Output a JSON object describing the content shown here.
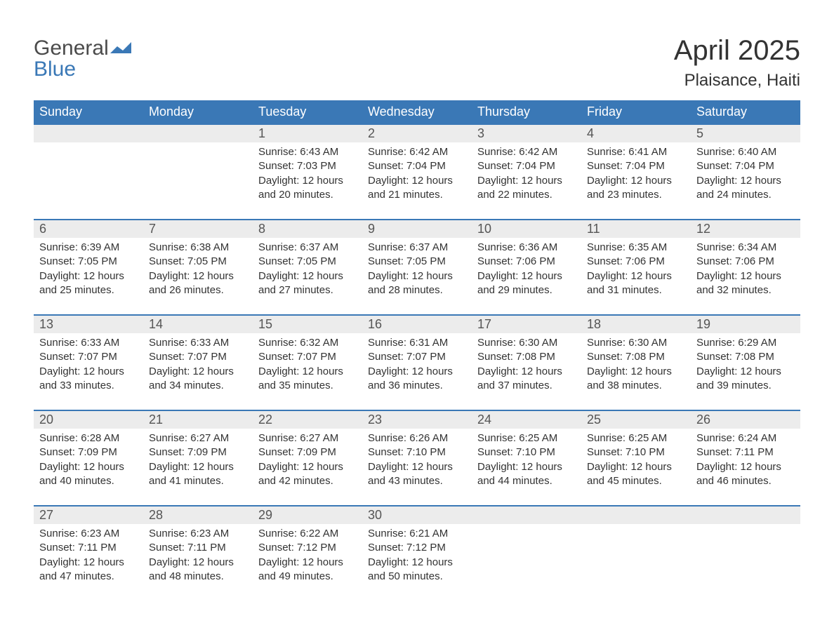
{
  "brand": {
    "word1": "General",
    "word2": "Blue"
  },
  "title": "April 2025",
  "location": "Plaisance, Haiti",
  "colors": {
    "header_bg": "#3a78b6",
    "header_text": "#ffffff",
    "daynum_bg": "#ececec",
    "text": "#333333",
    "rule": "#3a78b6",
    "page_bg": "#ffffff"
  },
  "typography": {
    "title_fontsize": 40,
    "location_fontsize": 24,
    "dow_fontsize": 18,
    "daynum_fontsize": 18,
    "body_fontsize": 15,
    "font_family": "Arial"
  },
  "layout": {
    "columns": 7,
    "rows": 5,
    "first_weekday": "Sunday"
  },
  "days_of_week": [
    "Sunday",
    "Monday",
    "Tuesday",
    "Wednesday",
    "Thursday",
    "Friday",
    "Saturday"
  ],
  "weeks": [
    [
      {
        "day": "",
        "sunrise": "",
        "sunset": "",
        "daylight": ""
      },
      {
        "day": "",
        "sunrise": "",
        "sunset": "",
        "daylight": ""
      },
      {
        "day": "1",
        "sunrise": "Sunrise: 6:43 AM",
        "sunset": "Sunset: 7:03 PM",
        "daylight": "Daylight: 12 hours and 20 minutes."
      },
      {
        "day": "2",
        "sunrise": "Sunrise: 6:42 AM",
        "sunset": "Sunset: 7:04 PM",
        "daylight": "Daylight: 12 hours and 21 minutes."
      },
      {
        "day": "3",
        "sunrise": "Sunrise: 6:42 AM",
        "sunset": "Sunset: 7:04 PM",
        "daylight": "Daylight: 12 hours and 22 minutes."
      },
      {
        "day": "4",
        "sunrise": "Sunrise: 6:41 AM",
        "sunset": "Sunset: 7:04 PM",
        "daylight": "Daylight: 12 hours and 23 minutes."
      },
      {
        "day": "5",
        "sunrise": "Sunrise: 6:40 AM",
        "sunset": "Sunset: 7:04 PM",
        "daylight": "Daylight: 12 hours and 24 minutes."
      }
    ],
    [
      {
        "day": "6",
        "sunrise": "Sunrise: 6:39 AM",
        "sunset": "Sunset: 7:05 PM",
        "daylight": "Daylight: 12 hours and 25 minutes."
      },
      {
        "day": "7",
        "sunrise": "Sunrise: 6:38 AM",
        "sunset": "Sunset: 7:05 PM",
        "daylight": "Daylight: 12 hours and 26 minutes."
      },
      {
        "day": "8",
        "sunrise": "Sunrise: 6:37 AM",
        "sunset": "Sunset: 7:05 PM",
        "daylight": "Daylight: 12 hours and 27 minutes."
      },
      {
        "day": "9",
        "sunrise": "Sunrise: 6:37 AM",
        "sunset": "Sunset: 7:05 PM",
        "daylight": "Daylight: 12 hours and 28 minutes."
      },
      {
        "day": "10",
        "sunrise": "Sunrise: 6:36 AM",
        "sunset": "Sunset: 7:06 PM",
        "daylight": "Daylight: 12 hours and 29 minutes."
      },
      {
        "day": "11",
        "sunrise": "Sunrise: 6:35 AM",
        "sunset": "Sunset: 7:06 PM",
        "daylight": "Daylight: 12 hours and 31 minutes."
      },
      {
        "day": "12",
        "sunrise": "Sunrise: 6:34 AM",
        "sunset": "Sunset: 7:06 PM",
        "daylight": "Daylight: 12 hours and 32 minutes."
      }
    ],
    [
      {
        "day": "13",
        "sunrise": "Sunrise: 6:33 AM",
        "sunset": "Sunset: 7:07 PM",
        "daylight": "Daylight: 12 hours and 33 minutes."
      },
      {
        "day": "14",
        "sunrise": "Sunrise: 6:33 AM",
        "sunset": "Sunset: 7:07 PM",
        "daylight": "Daylight: 12 hours and 34 minutes."
      },
      {
        "day": "15",
        "sunrise": "Sunrise: 6:32 AM",
        "sunset": "Sunset: 7:07 PM",
        "daylight": "Daylight: 12 hours and 35 minutes."
      },
      {
        "day": "16",
        "sunrise": "Sunrise: 6:31 AM",
        "sunset": "Sunset: 7:07 PM",
        "daylight": "Daylight: 12 hours and 36 minutes."
      },
      {
        "day": "17",
        "sunrise": "Sunrise: 6:30 AM",
        "sunset": "Sunset: 7:08 PM",
        "daylight": "Daylight: 12 hours and 37 minutes."
      },
      {
        "day": "18",
        "sunrise": "Sunrise: 6:30 AM",
        "sunset": "Sunset: 7:08 PM",
        "daylight": "Daylight: 12 hours and 38 minutes."
      },
      {
        "day": "19",
        "sunrise": "Sunrise: 6:29 AM",
        "sunset": "Sunset: 7:08 PM",
        "daylight": "Daylight: 12 hours and 39 minutes."
      }
    ],
    [
      {
        "day": "20",
        "sunrise": "Sunrise: 6:28 AM",
        "sunset": "Sunset: 7:09 PM",
        "daylight": "Daylight: 12 hours and 40 minutes."
      },
      {
        "day": "21",
        "sunrise": "Sunrise: 6:27 AM",
        "sunset": "Sunset: 7:09 PM",
        "daylight": "Daylight: 12 hours and 41 minutes."
      },
      {
        "day": "22",
        "sunrise": "Sunrise: 6:27 AM",
        "sunset": "Sunset: 7:09 PM",
        "daylight": "Daylight: 12 hours and 42 minutes."
      },
      {
        "day": "23",
        "sunrise": "Sunrise: 6:26 AM",
        "sunset": "Sunset: 7:10 PM",
        "daylight": "Daylight: 12 hours and 43 minutes."
      },
      {
        "day": "24",
        "sunrise": "Sunrise: 6:25 AM",
        "sunset": "Sunset: 7:10 PM",
        "daylight": "Daylight: 12 hours and 44 minutes."
      },
      {
        "day": "25",
        "sunrise": "Sunrise: 6:25 AM",
        "sunset": "Sunset: 7:10 PM",
        "daylight": "Daylight: 12 hours and 45 minutes."
      },
      {
        "day": "26",
        "sunrise": "Sunrise: 6:24 AM",
        "sunset": "Sunset: 7:11 PM",
        "daylight": "Daylight: 12 hours and 46 minutes."
      }
    ],
    [
      {
        "day": "27",
        "sunrise": "Sunrise: 6:23 AM",
        "sunset": "Sunset: 7:11 PM",
        "daylight": "Daylight: 12 hours and 47 minutes."
      },
      {
        "day": "28",
        "sunrise": "Sunrise: 6:23 AM",
        "sunset": "Sunset: 7:11 PM",
        "daylight": "Daylight: 12 hours and 48 minutes."
      },
      {
        "day": "29",
        "sunrise": "Sunrise: 6:22 AM",
        "sunset": "Sunset: 7:12 PM",
        "daylight": "Daylight: 12 hours and 49 minutes."
      },
      {
        "day": "30",
        "sunrise": "Sunrise: 6:21 AM",
        "sunset": "Sunset: 7:12 PM",
        "daylight": "Daylight: 12 hours and 50 minutes."
      },
      {
        "day": "",
        "sunrise": "",
        "sunset": "",
        "daylight": ""
      },
      {
        "day": "",
        "sunrise": "",
        "sunset": "",
        "daylight": ""
      },
      {
        "day": "",
        "sunrise": "",
        "sunset": "",
        "daylight": ""
      }
    ]
  ]
}
